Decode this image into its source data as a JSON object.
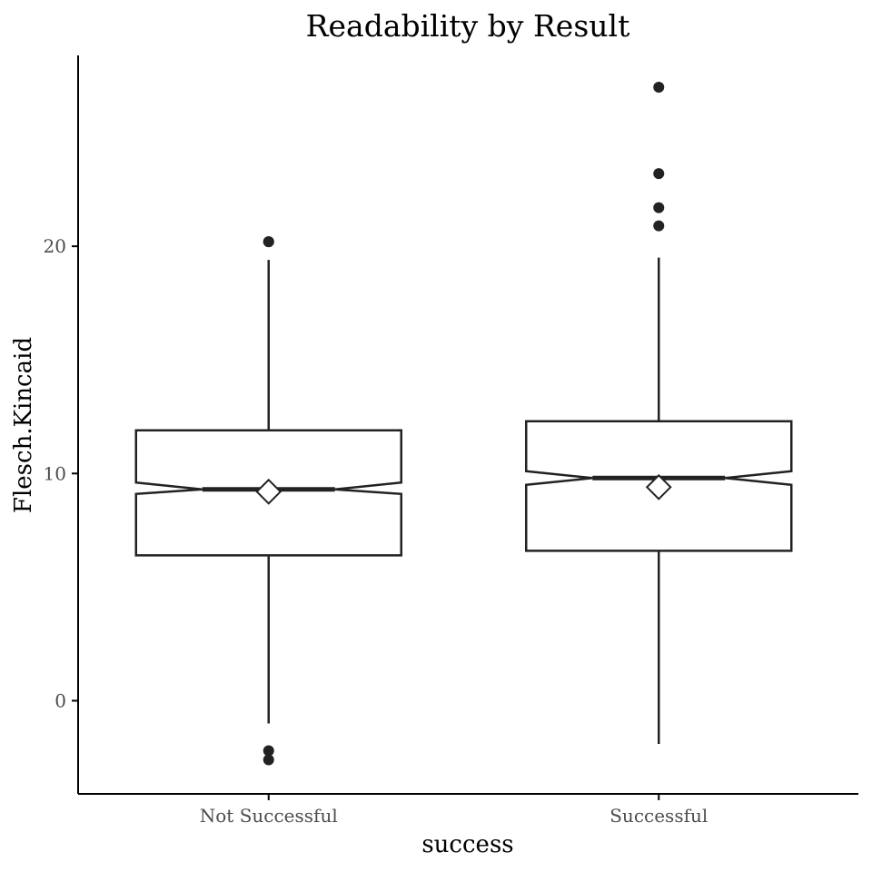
{
  "chart_data": {
    "type": "boxplot",
    "title": "Readability by Result",
    "xlabel": "success",
    "ylabel": "Flesch.Kincaid",
    "categories": [
      "Not Successful",
      "Successful"
    ],
    "y_ticks": [
      0,
      10,
      20
    ],
    "ylim": [
      -4.1,
      28.4
    ],
    "notched": true,
    "grid": false,
    "boxes": [
      {
        "category": "Not Successful",
        "q1": 6.4,
        "median": 9.3,
        "q3": 11.9,
        "notch_low": 9.1,
        "notch_high": 9.6,
        "whisker_low": -1.0,
        "whisker_high": 19.4,
        "mean": 9.2,
        "outliers": [
          20.2,
          20.2,
          -2.2,
          -2.6
        ]
      },
      {
        "category": "Successful",
        "q1": 6.6,
        "median": 9.8,
        "q3": 12.3,
        "notch_low": 9.5,
        "notch_high": 10.1,
        "whisker_low": -1.9,
        "whisker_high": 19.5,
        "mean": 9.4,
        "outliers": [
          27.0,
          23.2,
          21.7,
          20.9
        ]
      }
    ],
    "colors": {
      "line": "#222222",
      "box_fill": "#ffffff",
      "outlier": "#222222",
      "axis": "#000000",
      "tick_label": "#4d4d4d"
    }
  }
}
